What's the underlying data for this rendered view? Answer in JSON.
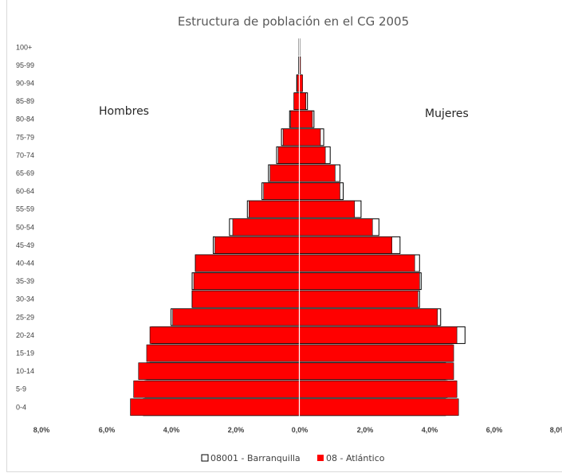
{
  "chart_data": {
    "type": "bar",
    "orientation": "horizontal",
    "subtype": "population-pyramid",
    "title": "Estructura de población en el CG 2005",
    "categories": [
      "0-4",
      "5-9",
      "10-14",
      "15-19",
      "20-24",
      "25-29",
      "30-34",
      "35-39",
      "40-44",
      "45-49",
      "50-54",
      "55-59",
      "60-64",
      "65-69",
      "70-74",
      "75-79",
      "80-84",
      "85-89",
      "90-94",
      "95-99",
      "100+"
    ],
    "side_labels": {
      "left": "Hombres",
      "right": "Mujeres"
    },
    "x_ticks": [
      "8,0%",
      "6,0%",
      "4,0%",
      "2,0%",
      "0,0%",
      "2,0%",
      "4,0%",
      "6,0%",
      "8,0%"
    ],
    "xlim": [
      -8,
      8
    ],
    "series": [
      {
        "name": "08001 - Barranquilla",
        "style": "outline",
        "color": "#000000",
        "fill": "#ffffff",
        "hombres": [
          4.8,
          4.75,
          4.7,
          4.6,
          4.55,
          3.95,
          3.3,
          3.3,
          3.2,
          2.65,
          2.15,
          1.6,
          1.15,
          0.95,
          0.7,
          0.55,
          0.3,
          0.15,
          0.08,
          0.02,
          0.01
        ],
        "mujeres": [
          4.5,
          4.55,
          4.5,
          4.7,
          5.1,
          4.35,
          3.7,
          3.75,
          3.7,
          3.1,
          2.45,
          1.9,
          1.35,
          1.25,
          0.95,
          0.75,
          0.45,
          0.25,
          0.08,
          0.03,
          0.01
        ]
      },
      {
        "name": "08 - Atlántico",
        "style": "filled",
        "color": "#ff0000",
        "fill": "#ff0000",
        "hombres": [
          5.2,
          5.1,
          4.95,
          4.7,
          4.6,
          3.9,
          3.3,
          3.25,
          3.2,
          2.6,
          2.05,
          1.55,
          1.1,
          0.9,
          0.65,
          0.5,
          0.27,
          0.17,
          0.07,
          0.02,
          0.01
        ],
        "mujeres": [
          4.9,
          4.85,
          4.75,
          4.75,
          4.85,
          4.25,
          3.65,
          3.7,
          3.55,
          2.85,
          2.25,
          1.7,
          1.25,
          1.1,
          0.8,
          0.65,
          0.4,
          0.2,
          0.1,
          0.03,
          0.01
        ]
      }
    ],
    "legend": {
      "position": "bottom"
    },
    "grid": false
  }
}
